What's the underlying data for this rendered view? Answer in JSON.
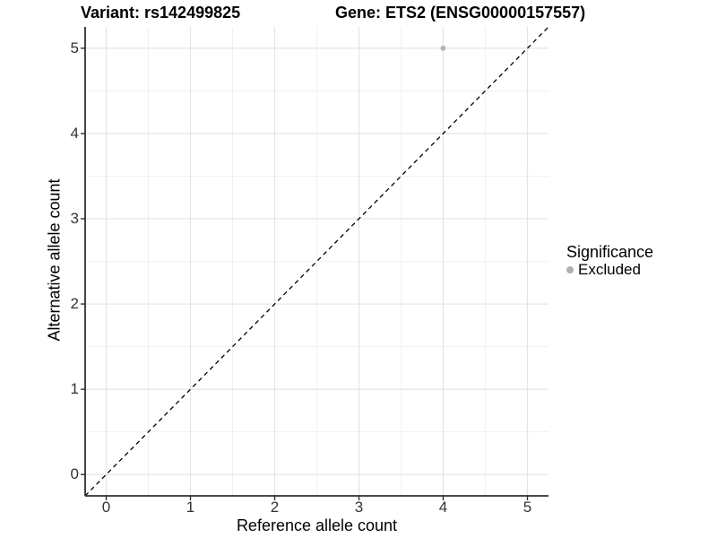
{
  "chart_data": {
    "type": "scatter",
    "title_left": "Variant: rs142499825",
    "title_right": "Gene: ETS2 (ENSG00000157557)",
    "xlabel": "Reference allele count",
    "ylabel": "Alternative allele count",
    "xlim": [
      -0.25,
      5.25
    ],
    "ylim": [
      -0.25,
      5.25
    ],
    "x_ticks": [
      0,
      1,
      2,
      3,
      4,
      5
    ],
    "y_ticks": [
      0,
      1,
      2,
      3,
      4,
      5
    ],
    "grid": {
      "show": true,
      "major_step": 1,
      "minor_step": 0.5,
      "major_color": "#e4e4e4",
      "minor_color": "#f1f1f1"
    },
    "reference_line": {
      "description": "identity line y = x",
      "style": "dashed",
      "color": "#000000"
    },
    "series": [
      {
        "name": "Excluded",
        "color": "#b5b5b5",
        "points": [
          {
            "x": 4,
            "y": 5
          }
        ]
      }
    ],
    "legend": {
      "title": "Significance",
      "position": "right",
      "items": [
        {
          "label": "Excluded",
          "color": "#b0b0b0",
          "marker": "circle"
        }
      ]
    },
    "axis_color": "#2f2f2f",
    "tick_color": "#2f2f2f",
    "tick_label_color": "#333333"
  }
}
